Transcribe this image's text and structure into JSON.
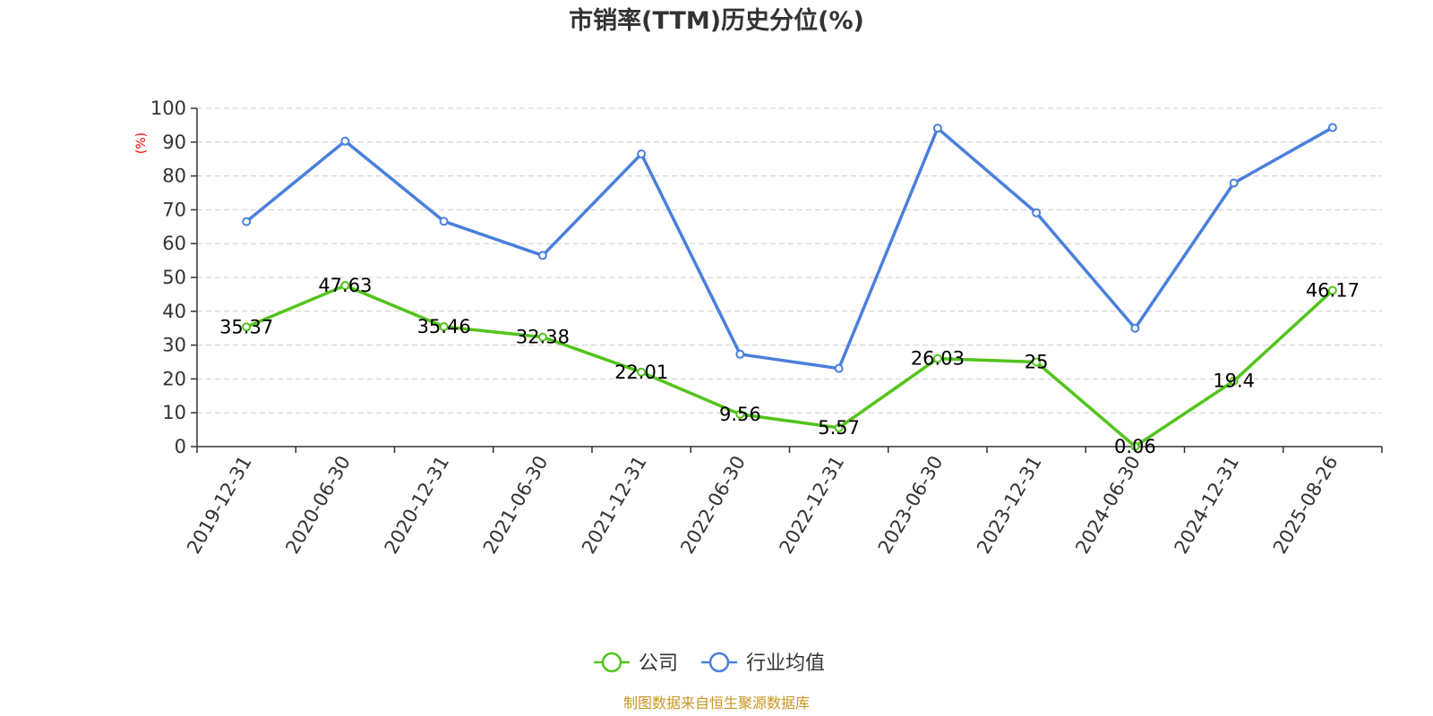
{
  "chart_data": {
    "type": "line",
    "title": "市销率(TTM)历史分位(%)",
    "ylabel": "(%)",
    "ylim": [
      0,
      100
    ],
    "yticks": [
      0,
      10,
      20,
      30,
      40,
      50,
      60,
      70,
      80,
      90,
      100
    ],
    "grid": true,
    "legend_position": "bottom-center",
    "categories": [
      "2019-12-31",
      "2020-06-30",
      "2020-12-31",
      "2021-06-30",
      "2021-12-31",
      "2022-06-30",
      "2022-12-31",
      "2023-06-30",
      "2023-12-31",
      "2024-06-30",
      "2024-12-31",
      "2025-08-26"
    ],
    "series": [
      {
        "name": "公司",
        "color": "#52c41a",
        "values": [
          35.37,
          47.63,
          35.46,
          32.38,
          22.01,
          9.56,
          5.57,
          26.03,
          25,
          0.06,
          19.4,
          46.17
        ],
        "labels": [
          "35.37",
          "47.63",
          "35.46",
          "32.38",
          "22.01",
          "9.56",
          "5.57",
          "26.03",
          "25",
          "0.06",
          "19.4",
          "46.17"
        ]
      },
      {
        "name": "行业均值",
        "color": "#4a7fdc",
        "values": [
          66.5,
          90.3,
          66.6,
          56.5,
          86.5,
          27.3,
          23.1,
          94.1,
          69.1,
          35.0,
          77.9,
          94.3
        ]
      }
    ],
    "source": "制图数据来自恒生聚源数据库",
    "colors": {
      "axis": "#333333",
      "grid": "#cccccc",
      "ylabel": "#ff0000",
      "source": "#c8961e"
    }
  }
}
